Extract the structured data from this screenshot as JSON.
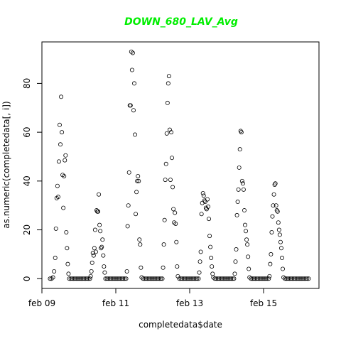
{
  "chart_data": {
    "type": "scatter",
    "title": "DOWN_680_LAV_Avg",
    "xlabel": "completedata$date",
    "ylabel": "as.numeric(completedata[, i])",
    "x_ticks": [
      "feb 09",
      "feb 11",
      "feb 13",
      "feb 15"
    ],
    "x_tick_days": [
      9,
      11,
      13,
      15
    ],
    "y_ticks": [
      0,
      20,
      40,
      60,
      80
    ],
    "xlim_days": [
      9.0,
      16.5
    ],
    "ylim": [
      -4,
      97
    ],
    "grid": false,
    "legend": "none",
    "colors": {
      "title": "#00ee00",
      "points": "#000000",
      "axes": "#000000"
    },
    "series": [
      {
        "points": [
          [
            9.22,
            0
          ],
          [
            9.26,
            0
          ],
          [
            9.3,
            0.5
          ],
          [
            9.33,
            3
          ],
          [
            9.36,
            8.5
          ],
          [
            9.38,
            20.5
          ],
          [
            9.4,
            33
          ],
          [
            9.42,
            38
          ],
          [
            9.44,
            33.5
          ],
          [
            9.46,
            48
          ],
          [
            9.48,
            63
          ],
          [
            9.5,
            55
          ],
          [
            9.52,
            74.5
          ],
          [
            9.54,
            60
          ],
          [
            9.56,
            42.5
          ],
          [
            9.58,
            29
          ],
          [
            9.6,
            42
          ],
          [
            9.62,
            48.5
          ],
          [
            9.64,
            50.5
          ],
          [
            9.66,
            19
          ],
          [
            9.68,
            12.5
          ],
          [
            9.7,
            6
          ],
          [
            9.72,
            2
          ],
          [
            9.74,
            0
          ],
          [
            9.78,
            0
          ],
          [
            9.82,
            0
          ],
          [
            9.86,
            0
          ],
          [
            9.9,
            0
          ],
          [
            9.94,
            0
          ],
          [
            9.98,
            0
          ],
          [
            10.02,
            0
          ],
          [
            10.06,
            0
          ],
          [
            10.1,
            0
          ],
          [
            10.14,
            0
          ],
          [
            10.18,
            0
          ],
          [
            10.22,
            0
          ],
          [
            10.26,
            0
          ],
          [
            10.3,
            0
          ],
          [
            10.32,
            1
          ],
          [
            10.34,
            3
          ],
          [
            10.36,
            6.5
          ],
          [
            10.38,
            10.5
          ],
          [
            10.4,
            9.5
          ],
          [
            10.42,
            12.5
          ],
          [
            10.44,
            20
          ],
          [
            10.46,
            11
          ],
          [
            10.48,
            28
          ],
          [
            10.5,
            27.5
          ],
          [
            10.52,
            27.5
          ],
          [
            10.54,
            34.5
          ],
          [
            10.56,
            22
          ],
          [
            10.58,
            19.5
          ],
          [
            10.6,
            12.5
          ],
          [
            10.62,
            13
          ],
          [
            10.64,
            16
          ],
          [
            10.66,
            9.5
          ],
          [
            10.68,
            5
          ],
          [
            10.7,
            2.5
          ],
          [
            10.72,
            0
          ],
          [
            10.76,
            0
          ],
          [
            10.8,
            0
          ],
          [
            10.84,
            0
          ],
          [
            10.88,
            0
          ],
          [
            10.92,
            0
          ],
          [
            10.96,
            0
          ],
          [
            11.0,
            0
          ],
          [
            11.04,
            0
          ],
          [
            11.08,
            0
          ],
          [
            11.12,
            0
          ],
          [
            11.16,
            0
          ],
          [
            11.2,
            0
          ],
          [
            11.24,
            0
          ],
          [
            11.28,
            0
          ],
          [
            11.3,
            3
          ],
          [
            11.32,
            21.5
          ],
          [
            11.34,
            30
          ],
          [
            11.36,
            43.5
          ],
          [
            11.38,
            71
          ],
          [
            11.4,
            71
          ],
          [
            11.42,
            93
          ],
          [
            11.44,
            85.5
          ],
          [
            11.46,
            92.5
          ],
          [
            11.48,
            69
          ],
          [
            11.5,
            80
          ],
          [
            11.52,
            59
          ],
          [
            11.54,
            26.5
          ],
          [
            11.56,
            35.5
          ],
          [
            11.58,
            40
          ],
          [
            11.6,
            42
          ],
          [
            11.62,
            40
          ],
          [
            11.64,
            16
          ],
          [
            11.66,
            14
          ],
          [
            11.68,
            4.5
          ],
          [
            11.7,
            0.5
          ],
          [
            11.74,
            0
          ],
          [
            11.78,
            0
          ],
          [
            11.82,
            0
          ],
          [
            11.86,
            0
          ],
          [
            11.9,
            0
          ],
          [
            11.94,
            0
          ],
          [
            11.98,
            0
          ],
          [
            12.02,
            0
          ],
          [
            12.06,
            0
          ],
          [
            12.1,
            0
          ],
          [
            12.14,
            0
          ],
          [
            12.18,
            0
          ],
          [
            12.22,
            0
          ],
          [
            12.26,
            0
          ],
          [
            12.28,
            4.5
          ],
          [
            12.3,
            14
          ],
          [
            12.32,
            24
          ],
          [
            12.34,
            40.5
          ],
          [
            12.36,
            47
          ],
          [
            12.38,
            59.5
          ],
          [
            12.4,
            72
          ],
          [
            12.42,
            80
          ],
          [
            12.44,
            83
          ],
          [
            12.46,
            61
          ],
          [
            12.48,
            40.5
          ],
          [
            12.5,
            60
          ],
          [
            12.52,
            49.5
          ],
          [
            12.54,
            37.5
          ],
          [
            12.56,
            28.5
          ],
          [
            12.58,
            23
          ],
          [
            12.6,
            27
          ],
          [
            12.62,
            22.5
          ],
          [
            12.64,
            15
          ],
          [
            12.66,
            5
          ],
          [
            12.68,
            1
          ],
          [
            12.72,
            0
          ],
          [
            12.76,
            0
          ],
          [
            12.8,
            0
          ],
          [
            12.84,
            0
          ],
          [
            12.88,
            0
          ],
          [
            12.92,
            0
          ],
          [
            12.96,
            0
          ],
          [
            13.0,
            0
          ],
          [
            13.04,
            0
          ],
          [
            13.08,
            0
          ],
          [
            13.12,
            0
          ],
          [
            13.16,
            0
          ],
          [
            13.2,
            0
          ],
          [
            13.24,
            0
          ],
          [
            13.26,
            2.5
          ],
          [
            13.28,
            7
          ],
          [
            13.3,
            11
          ],
          [
            13.32,
            26.5
          ],
          [
            13.34,
            31
          ],
          [
            13.36,
            35
          ],
          [
            13.38,
            34
          ],
          [
            13.4,
            32
          ],
          [
            13.42,
            31.5
          ],
          [
            13.44,
            29
          ],
          [
            13.46,
            28.5
          ],
          [
            13.48,
            32.5
          ],
          [
            13.5,
            29.5
          ],
          [
            13.52,
            24.5
          ],
          [
            13.54,
            17.5
          ],
          [
            13.56,
            13
          ],
          [
            13.58,
            8.5
          ],
          [
            13.6,
            5
          ],
          [
            13.62,
            2
          ],
          [
            13.64,
            0.5
          ],
          [
            13.68,
            0
          ],
          [
            13.72,
            0
          ],
          [
            13.76,
            0
          ],
          [
            13.8,
            0
          ],
          [
            13.84,
            0
          ],
          [
            13.88,
            0
          ],
          [
            13.92,
            0
          ],
          [
            13.96,
            0
          ],
          [
            14.0,
            0
          ],
          [
            14.04,
            0
          ],
          [
            14.08,
            0
          ],
          [
            14.12,
            0
          ],
          [
            14.16,
            0
          ],
          [
            14.2,
            0
          ],
          [
            14.22,
            2
          ],
          [
            14.24,
            7
          ],
          [
            14.26,
            12
          ],
          [
            14.28,
            26
          ],
          [
            14.3,
            31.5
          ],
          [
            14.32,
            36.5
          ],
          [
            14.34,
            45.5
          ],
          [
            14.36,
            53
          ],
          [
            14.38,
            60.5
          ],
          [
            14.4,
            60
          ],
          [
            14.42,
            40
          ],
          [
            14.44,
            39
          ],
          [
            14.46,
            36.5
          ],
          [
            14.48,
            28
          ],
          [
            14.5,
            22
          ],
          [
            14.52,
            19.5
          ],
          [
            14.54,
            16
          ],
          [
            14.56,
            14
          ],
          [
            14.58,
            9
          ],
          [
            14.6,
            4
          ],
          [
            14.62,
            0.5
          ],
          [
            14.66,
            0
          ],
          [
            14.7,
            0
          ],
          [
            14.74,
            0
          ],
          [
            14.78,
            0
          ],
          [
            14.82,
            0
          ],
          [
            14.86,
            0
          ],
          [
            14.9,
            0
          ],
          [
            14.94,
            0
          ],
          [
            14.98,
            0
          ],
          [
            15.02,
            0
          ],
          [
            15.06,
            0
          ],
          [
            15.1,
            0
          ],
          [
            15.14,
            0
          ],
          [
            15.16,
            1
          ],
          [
            15.18,
            6
          ],
          [
            15.2,
            10
          ],
          [
            15.22,
            19
          ],
          [
            15.24,
            25.5
          ],
          [
            15.26,
            30
          ],
          [
            15.28,
            34.5
          ],
          [
            15.3,
            38.5
          ],
          [
            15.32,
            39
          ],
          [
            15.34,
            30
          ],
          [
            15.36,
            28
          ],
          [
            15.38,
            27.5
          ],
          [
            15.4,
            23
          ],
          [
            15.42,
            20
          ],
          [
            15.44,
            18
          ],
          [
            15.46,
            15
          ],
          [
            15.48,
            12.5
          ],
          [
            15.5,
            8.5
          ],
          [
            15.52,
            4
          ],
          [
            15.54,
            0.5
          ],
          [
            15.58,
            0
          ],
          [
            15.62,
            0
          ],
          [
            15.66,
            0
          ],
          [
            15.7,
            0
          ],
          [
            15.74,
            0
          ],
          [
            15.78,
            0
          ],
          [
            15.82,
            0
          ],
          [
            15.86,
            0
          ],
          [
            15.9,
            0
          ],
          [
            15.94,
            0
          ],
          [
            15.98,
            0
          ],
          [
            16.02,
            0
          ],
          [
            16.06,
            0
          ],
          [
            16.1,
            0
          ],
          [
            16.14,
            0
          ],
          [
            16.18,
            0
          ],
          [
            16.22,
            0
          ]
        ]
      }
    ]
  }
}
